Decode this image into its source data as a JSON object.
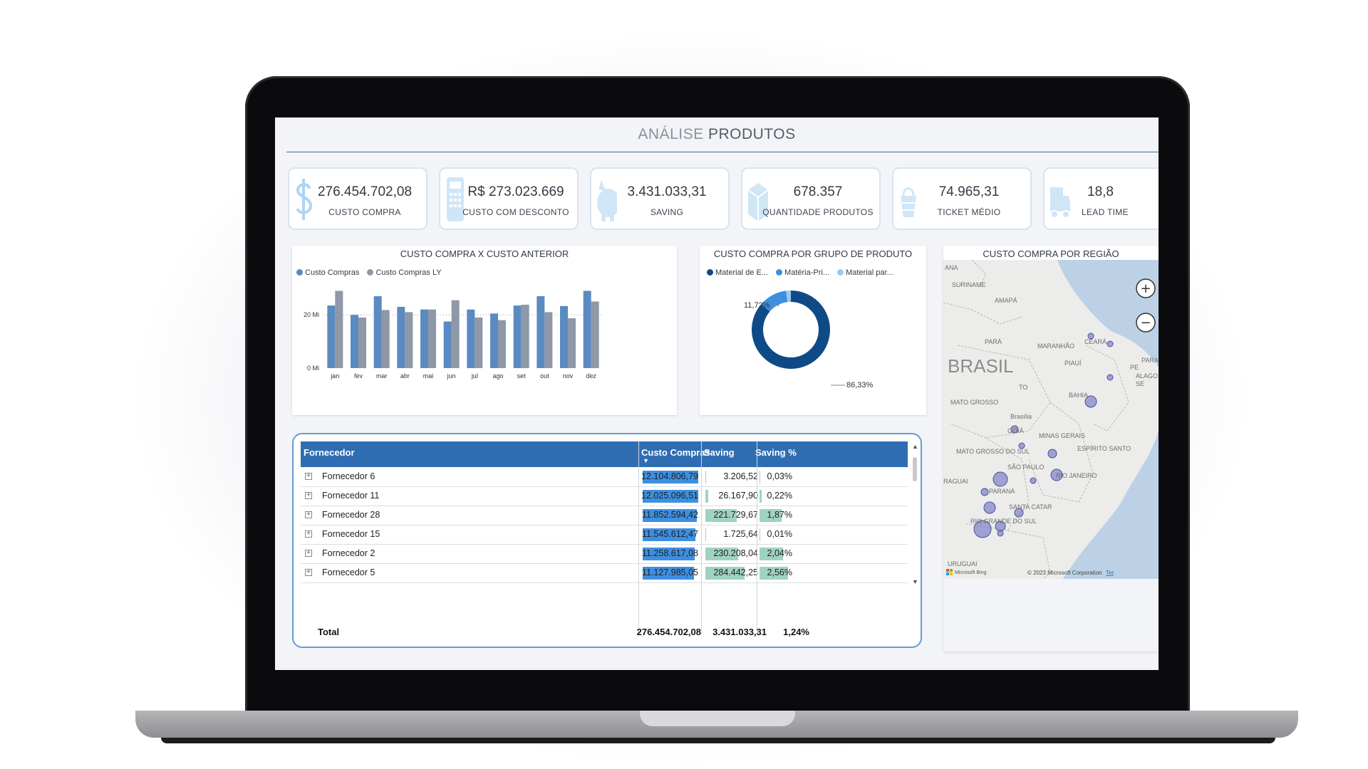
{
  "header": {
    "title_light": "ANÁLISE",
    "title_bold": "PRODUTOS"
  },
  "kpis": [
    {
      "value": "276.454.702,08",
      "label": "CUSTO COMPRA",
      "icon": "dollar-icon"
    },
    {
      "value": "R$ 273.023.669",
      "label": "CUSTO COM DESCONTO",
      "icon": "receipt-icon"
    },
    {
      "value": "3.431.033,31",
      "label": "SAVING",
      "icon": "piggy-bank-icon"
    },
    {
      "value": "678.357",
      "label": "QUANTIDADE PRODUTOS",
      "icon": "box-icon"
    },
    {
      "value": "74.965,31",
      "label": "TICKET MÉDIO",
      "icon": "shopping-basket-icon"
    },
    {
      "value": "18,8",
      "label": "LEAD TIME",
      "icon": "truck-icon"
    }
  ],
  "bar_chart": {
    "title": "CUSTO COMPRA X CUSTO ANTERIOR",
    "legend": [
      "Custo Compras",
      "Custo Compras LY"
    ],
    "y_ticks": [
      "20 Mi",
      "0 Mi"
    ]
  },
  "donut": {
    "title": "CUSTO COMPRA POR GRUPO DE PRODUTO",
    "legend": [
      "Material de E...",
      "Matéria-Pri...",
      "Material par..."
    ],
    "label_small": "11,72%",
    "label_large": "86,33%"
  },
  "map": {
    "title": "CUSTO COMPRA POR REGIÃO",
    "country_label": "BRASIL",
    "places": [
      "SURINAME",
      "AMAPÁ",
      "PARÁ",
      "MARANHÃO",
      "CEARÁ",
      "PIAUÍ",
      "PARAÍ",
      "PE",
      "ALAGO",
      "SE",
      "TO",
      "BAHIA",
      "MATO GROSSO",
      "Brasília",
      "GOIÁ",
      "MINAS GERAIS",
      "ESPÍRITO SANTO",
      "MATO GROSSO DO SUL",
      "SÃO PAULO",
      "RIO JANEIRO",
      "PARANÁ",
      "SANTA CATAR",
      "RIO GRANDE DO SUL",
      "RAGUAI",
      "URUGUAI",
      "ANA"
    ],
    "copyright": "© 2023 Microsoft Corporation",
    "terms": "Ter",
    "bing": "Microsoft Bing",
    "zoom_in": "+",
    "zoom_out": "−"
  },
  "table": {
    "columns": [
      "Fornecedor",
      "Custo Compras",
      "Saving",
      "Saving %"
    ],
    "rows": [
      {
        "name": "Fornecedor 6",
        "custo": "12.104.806,79",
        "custo_frac": 0.98,
        "saving": "3.206,52",
        "saving_frac": 0.01,
        "pct": "0,03%",
        "pct_frac": 0.01
      },
      {
        "name": "Fornecedor 11",
        "custo": "12.025.096,51",
        "custo_frac": 0.97,
        "saving": "26.167,90",
        "saving_frac": 0.05,
        "pct": "0,22%",
        "pct_frac": 0.05
      },
      {
        "name": "Fornecedor 28",
        "custo": "11.852.594,42",
        "custo_frac": 0.95,
        "saving": "221.729,67",
        "saving_frac": 0.58,
        "pct": "1,87%",
        "pct_frac": 0.62
      },
      {
        "name": "Fornecedor 15",
        "custo": "11.545.612,47",
        "custo_frac": 0.93,
        "saving": "1.725,64",
        "saving_frac": 0.01,
        "pct": "0,01%",
        "pct_frac": 0.01
      },
      {
        "name": "Fornecedor 2",
        "custo": "11.258.617,08",
        "custo_frac": 0.91,
        "saving": "230.208,04",
        "saving_frac": 0.6,
        "pct": "2,04%",
        "pct_frac": 0.66
      },
      {
        "name": "Fornecedor 5",
        "custo": "11.127.985,05",
        "custo_frac": 0.9,
        "saving": "284.442,25",
        "saving_frac": 0.72,
        "pct": "2,56%",
        "pct_frac": 0.8
      }
    ],
    "total": {
      "label": "Total",
      "custo": "276.454.702,08",
      "saving": "3.431.033,31",
      "pct": "1,24%"
    }
  },
  "colors": {
    "accent": "#2f6db3",
    "series_primary": "#5b8ac2",
    "series_ly": "#8e98a6",
    "donut_dark": "#0e4a86",
    "donut_mid": "#3d8fe0",
    "donut_light": "#9cc8f2",
    "bar_custo": "#3d8fe0",
    "bar_saving": "#9fd3c1",
    "map_bubble": "#6b6fc0"
  },
  "chart_data": [
    {
      "type": "bar",
      "title": "CUSTO COMPRA X CUSTO ANTERIOR",
      "categories": [
        "jan",
        "fev",
        "mar",
        "abr",
        "mai",
        "jun",
        "jul",
        "ago",
        "set",
        "out",
        "nov",
        "dez"
      ],
      "series": [
        {
          "name": "Custo Compras",
          "values": [
            23.5,
            20,
            27,
            23,
            22,
            17.5,
            22,
            20.5,
            23.5,
            27,
            23.3,
            29
          ]
        },
        {
          "name": "Custo Compras LY",
          "values": [
            29,
            19,
            21.8,
            21,
            22,
            25.5,
            19,
            18,
            23.8,
            21,
            18.7,
            25
          ]
        }
      ],
      "ylim": [
        0,
        31
      ],
      "y_ticks": [
        0,
        20
      ],
      "legend_position": "top-left",
      "grid": false
    },
    {
      "type": "pie",
      "title": "CUSTO COMPRA POR GRUPO DE PRODUTO",
      "categories": [
        "Material de E...",
        "Matéria-Pri...",
        "Material par..."
      ],
      "values": [
        86.33,
        11.72,
        1.95
      ],
      "donut": true,
      "legend_position": "top"
    }
  ]
}
